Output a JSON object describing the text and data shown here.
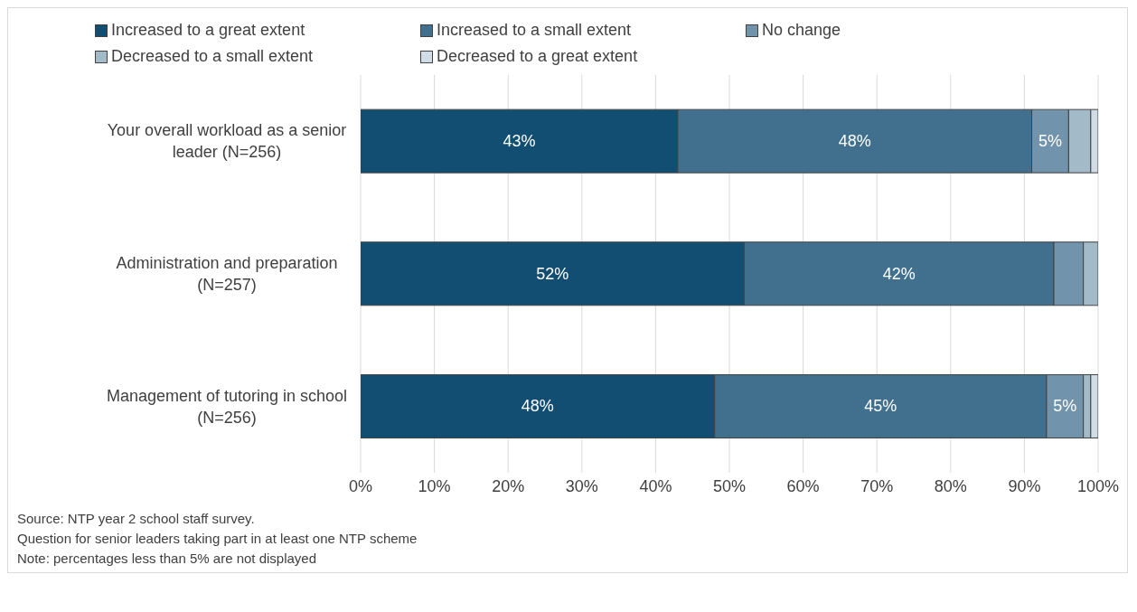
{
  "chart_data": {
    "type": "bar",
    "orientation": "horizontal",
    "stacked": true,
    "categories": [
      "Your overall workload as a senior leader (N=256)",
      "Administration and preparation (N=257)",
      "Management of tutoring in school (N=256)"
    ],
    "series": [
      {
        "name": "Increased to a great extent",
        "color": "#124e72",
        "values": [
          43,
          52,
          48
        ],
        "value_labels": [
          "43%",
          "52%",
          "48%"
        ]
      },
      {
        "name": "Increased to a small extent",
        "color": "#41708f",
        "values": [
          48,
          42,
          45
        ],
        "value_labels": [
          "48%",
          "42%",
          "45%"
        ]
      },
      {
        "name": "No change",
        "color": "#7193ab",
        "values": [
          5,
          4,
          5
        ],
        "value_labels": [
          "5%",
          null,
          "5%"
        ]
      },
      {
        "name": "Decreased to a small extent",
        "color": "#a3bac9",
        "values": [
          3,
          2,
          1
        ]
      },
      {
        "name": "Decreased to a great extent",
        "color": "#d1dde6",
        "values": [
          1,
          0,
          1
        ]
      }
    ],
    "xlim": [
      0,
      100
    ],
    "xticks": [
      {
        "value": 0,
        "label": "0%"
      },
      {
        "value": 10,
        "label": "10%"
      },
      {
        "value": 20,
        "label": "20%"
      },
      {
        "value": 30,
        "label": "30%"
      },
      {
        "value": 40,
        "label": "40%"
      },
      {
        "value": 50,
        "label": "50%"
      },
      {
        "value": 60,
        "label": "60%"
      },
      {
        "value": 70,
        "label": "70%"
      },
      {
        "value": 80,
        "label": "80%"
      },
      {
        "value": 90,
        "label": "90%"
      },
      {
        "value": 100,
        "label": "100%"
      }
    ],
    "grid": "x",
    "legend": "top",
    "annotations": [
      "Source: NTP year 2 school staff survey.",
      "Question for senior leaders taking part in at least one NTP scheme",
      "Note: percentages less than 5% are not displayed"
    ]
  }
}
